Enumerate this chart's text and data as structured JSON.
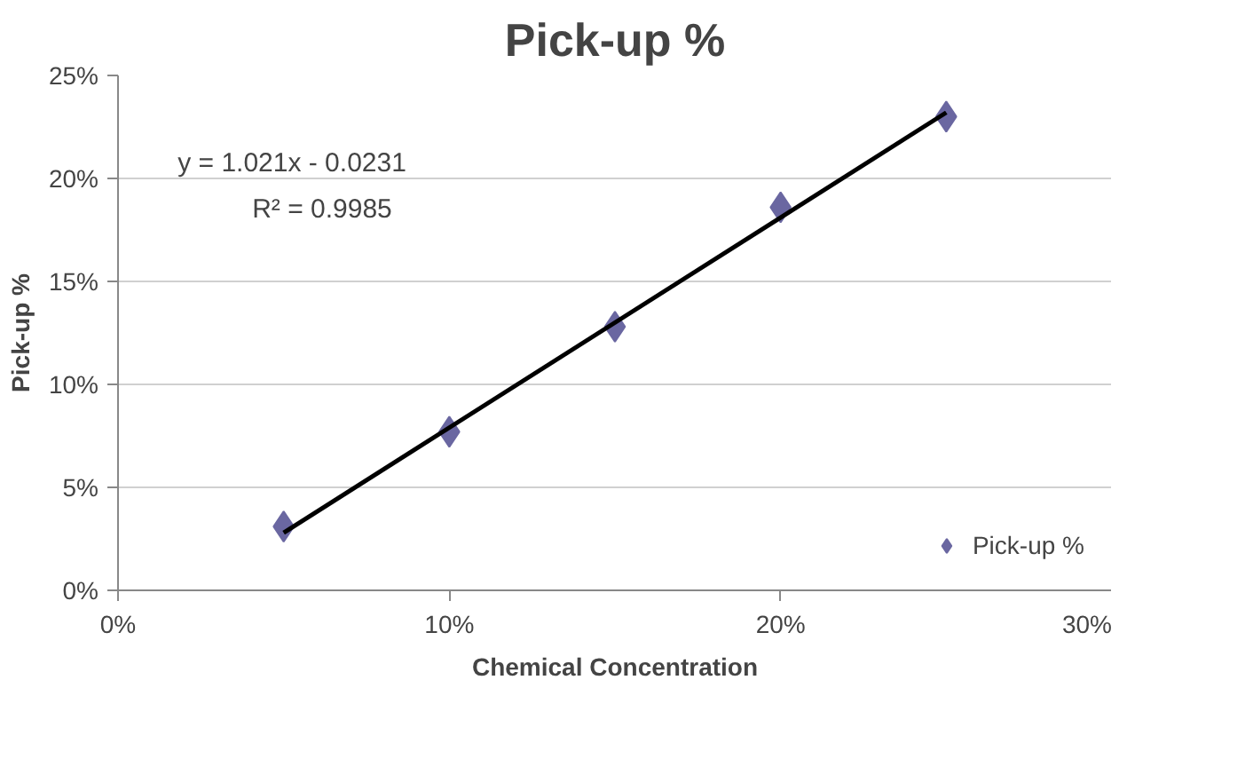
{
  "chart_data": {
    "type": "scatter",
    "title": "Pick-up %",
    "xlabel": "Chemical Concentration",
    "ylabel": "Pick-up %",
    "x": [
      5,
      10,
      15,
      20,
      25
    ],
    "series": [
      {
        "name": "Pick-up %",
        "color": "#6a67a1",
        "values": [
          3.1,
          7.7,
          12.8,
          18.6,
          23.0
        ],
        "marker": "diamond"
      },
      {
        "type": "line",
        "color": "#000000",
        "x": [
          5,
          25
        ],
        "values": [
          2.8,
          23.2
        ],
        "line_style": "solid"
      }
    ],
    "annotations": [
      "y = 1.021x - 0.0231",
      "R² = 0.9985"
    ],
    "xlim": [
      0,
      30
    ],
    "xticks": [
      {
        "value": 0,
        "label": "0%"
      },
      {
        "value": 10,
        "label": "10%"
      },
      {
        "value": 20,
        "label": "20%"
      },
      {
        "value": 30,
        "label": "30%"
      }
    ],
    "ylim": [
      0,
      25
    ],
    "yticks": [
      {
        "value": 0,
        "label": "0%"
      },
      {
        "value": 5,
        "label": "5%"
      },
      {
        "value": 10,
        "label": "10%"
      },
      {
        "value": 15,
        "label": "15%"
      },
      {
        "value": 20,
        "label": "20%"
      },
      {
        "value": 25,
        "label": "25%"
      }
    ],
    "grid": "y",
    "legend": "bottom right"
  }
}
